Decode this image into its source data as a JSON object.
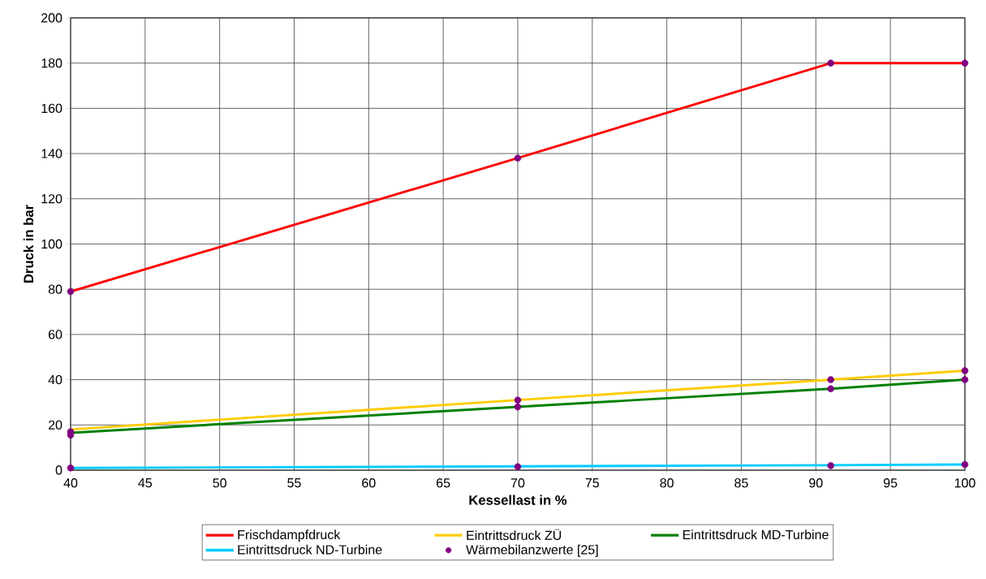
{
  "chart_data": {
    "type": "line",
    "xlabel": "Kessellast in %",
    "ylabel": "Druck in bar",
    "xlim": [
      40,
      100
    ],
    "xticks": [
      40,
      45,
      50,
      55,
      60,
      65,
      70,
      75,
      80,
      85,
      90,
      95,
      100
    ],
    "ylim": [
      0,
      200
    ],
    "yticks": [
      0,
      20,
      40,
      60,
      80,
      100,
      120,
      140,
      160,
      180,
      200
    ],
    "grid": true,
    "legend": "bottom",
    "line_style": "solid",
    "series": [
      {
        "name": "Frischdampfdruck",
        "color": "#ff0000",
        "x": [
          40,
          70,
          91,
          100
        ],
        "values": [
          79,
          138,
          180,
          180
        ]
      },
      {
        "name": "Eintrittsdruck ZÜ",
        "color": "#ffcc00",
        "x": [
          40,
          70,
          91,
          100
        ],
        "values": [
          18,
          31,
          40,
          44
        ]
      },
      {
        "name": "Eintrittsdruck MD-Turbine",
        "color": "#008000",
        "x": [
          40,
          70,
          91,
          100
        ],
        "values": [
          16.5,
          28,
          36,
          40
        ]
      },
      {
        "name": "Eintrittsdruck ND-Turbine",
        "color": "#00ccff",
        "x": [
          40,
          70,
          91,
          100
        ],
        "values": [
          1,
          1.7,
          2.2,
          2.5
        ]
      },
      {
        "name": "Wärmebilanzwerte [25]",
        "type": "scatter",
        "marker": "circle",
        "color": "#800080",
        "x": [
          40,
          40,
          40,
          40,
          70,
          70,
          70,
          70,
          91,
          91,
          91,
          91,
          100,
          100,
          100,
          100
        ],
        "values": [
          79,
          17,
          15.5,
          1,
          138,
          31,
          28,
          1.5,
          180,
          40,
          36,
          2,
          180,
          44,
          40,
          2.5
        ]
      }
    ]
  }
}
